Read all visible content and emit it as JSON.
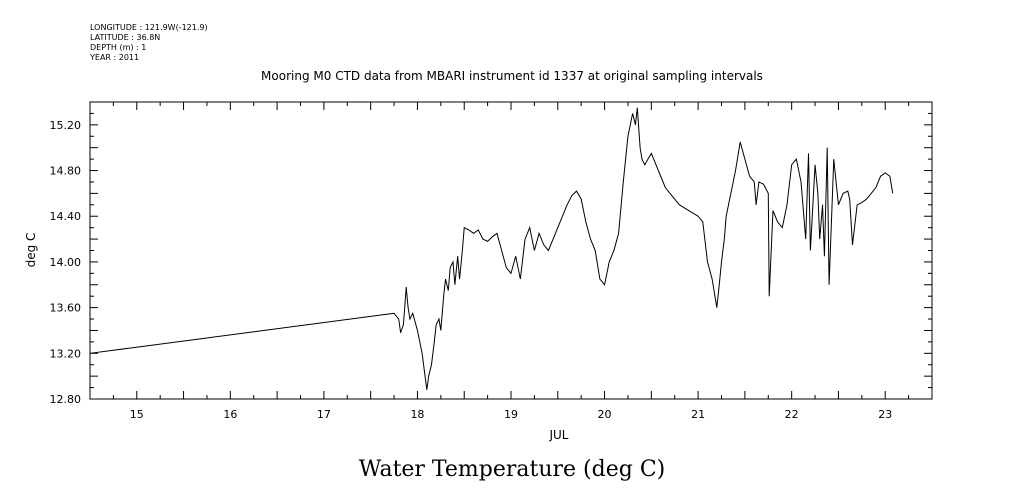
{
  "header": {
    "longitude": "LONGITUDE : 121.9W(-121.9)",
    "latitude": "LATITUDE : 36.8N",
    "depth": "DEPTH (m) : 1",
    "year": "YEAR : 2011"
  },
  "chart_data": {
    "type": "line",
    "title": "Mooring M0 CTD data from MBARI instrument id 1337 at original sampling intervals",
    "xlabel": "JUL",
    "ylabel": "deg C",
    "bottom_title": "Water Temperature (deg C)",
    "xlim": [
      14.5,
      23.5
    ],
    "ylim": [
      12.8,
      15.4
    ],
    "x_ticks": [
      "15",
      "16",
      "17",
      "18",
      "19",
      "20",
      "21",
      "22",
      "23"
    ],
    "y_ticks": [
      "12.80",
      "13.20",
      "13.60",
      "14.00",
      "14.40",
      "14.80",
      "15.20"
    ],
    "grid": false,
    "series": [
      {
        "x": [
          14.5,
          17.75,
          17.8,
          17.82,
          17.85,
          17.88,
          17.9,
          17.92,
          17.95,
          18.0,
          18.05,
          18.1,
          18.12,
          18.15,
          18.18,
          18.2,
          18.23,
          18.25,
          18.28,
          18.3,
          18.33,
          18.35,
          18.38,
          18.4,
          18.43,
          18.45,
          18.48,
          18.5,
          18.55,
          18.6,
          18.65,
          18.7,
          18.75,
          18.8,
          18.85,
          18.9,
          18.95,
          19.0,
          19.05,
          19.1,
          19.15,
          19.2,
          19.25,
          19.3,
          19.35,
          19.4,
          19.45,
          19.5,
          19.55,
          19.6,
          19.65,
          19.7,
          19.75,
          19.8,
          19.85,
          19.9,
          19.95,
          20.0,
          20.05,
          20.1,
          20.15,
          20.2,
          20.25,
          20.3,
          20.33,
          20.35,
          20.38,
          20.4,
          20.43,
          20.45,
          20.5,
          20.55,
          20.6,
          20.65,
          20.7,
          20.8,
          20.9,
          21.0,
          21.05,
          21.1,
          21.15,
          21.2,
          21.22,
          21.25,
          21.28,
          21.3,
          21.35,
          21.4,
          21.45,
          21.5,
          21.55,
          21.6,
          21.62,
          21.65,
          21.7,
          21.75,
          21.76,
          21.8,
          21.85,
          21.9,
          21.95,
          22.0,
          22.05,
          22.1,
          22.15,
          22.18,
          22.2,
          22.25,
          22.28,
          22.3,
          22.33,
          22.35,
          22.38,
          22.4,
          22.45,
          22.5,
          22.55,
          22.6,
          22.62,
          22.65,
          22.7,
          22.75,
          22.8,
          22.85,
          22.9,
          22.95,
          23.0,
          23.05,
          23.08
        ],
        "y": [
          13.2,
          13.55,
          13.5,
          13.38,
          13.45,
          13.78,
          13.6,
          13.5,
          13.55,
          13.4,
          13.2,
          12.88,
          13.0,
          13.1,
          13.3,
          13.45,
          13.5,
          13.4,
          13.7,
          13.85,
          13.75,
          13.95,
          14.0,
          13.8,
          14.05,
          13.85,
          14.1,
          14.3,
          14.28,
          14.25,
          14.28,
          14.2,
          14.18,
          14.22,
          14.25,
          14.1,
          13.95,
          13.9,
          14.05,
          13.85,
          14.2,
          14.3,
          14.1,
          14.25,
          14.15,
          14.1,
          14.2,
          14.3,
          14.4,
          14.5,
          14.58,
          14.62,
          14.55,
          14.35,
          14.2,
          14.1,
          13.85,
          13.8,
          14.0,
          14.1,
          14.25,
          14.7,
          15.1,
          15.3,
          15.2,
          15.35,
          15.0,
          14.9,
          14.85,
          14.88,
          14.95,
          14.85,
          14.75,
          14.65,
          14.6,
          14.5,
          14.45,
          14.4,
          14.35,
          14.0,
          13.85,
          13.6,
          13.75,
          14.0,
          14.2,
          14.4,
          14.6,
          14.8,
          15.05,
          14.9,
          14.75,
          14.7,
          14.5,
          14.7,
          14.68,
          14.6,
          13.7,
          14.45,
          14.35,
          14.3,
          14.5,
          14.85,
          14.9,
          14.7,
          14.2,
          14.95,
          14.1,
          14.85,
          14.6,
          14.2,
          14.5,
          14.05,
          15.0,
          13.8,
          14.9,
          14.5,
          14.6,
          14.62,
          14.55,
          14.15,
          14.5,
          14.52,
          14.55,
          14.6,
          14.65,
          14.75,
          14.78,
          14.75,
          14.6
        ],
        "color": "#000000"
      }
    ]
  }
}
